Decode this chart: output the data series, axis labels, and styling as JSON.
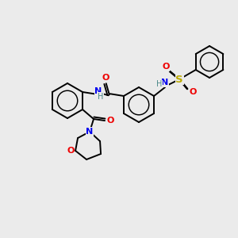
{
  "bg_color": "#ebebeb",
  "atom_colors": {
    "C": "#000000",
    "N": "#0000ee",
    "O": "#ee0000",
    "S": "#bbaa00",
    "H": "#4a8888"
  },
  "bond_color": "#000000",
  "lw": 1.4,
  "r_benz": 22,
  "r_phenyl": 20
}
